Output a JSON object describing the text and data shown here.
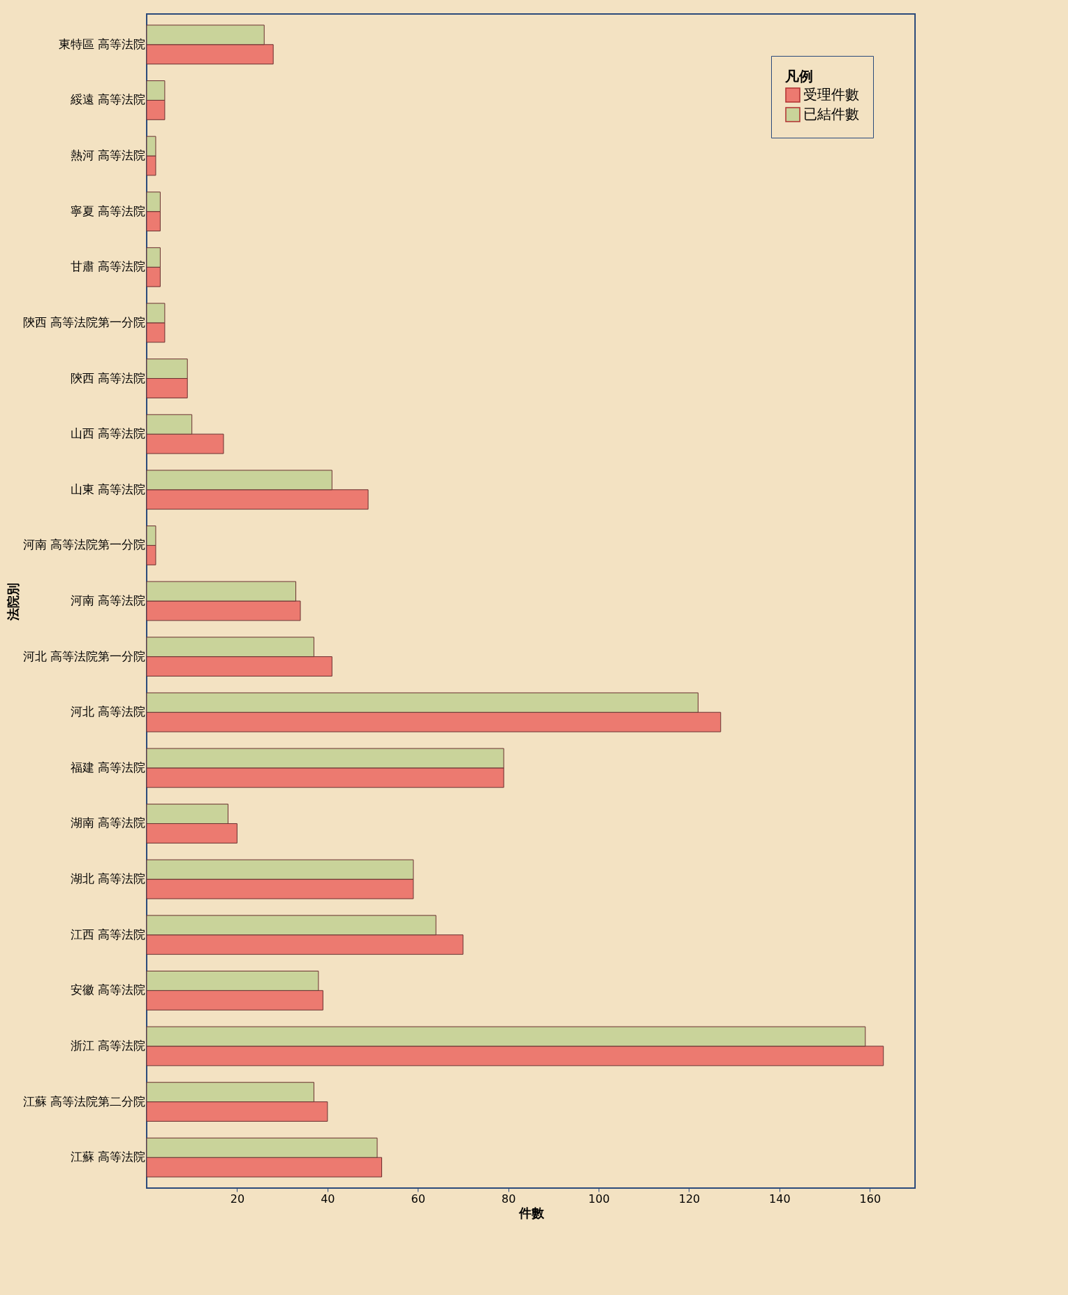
{
  "chart_data": {
    "type": "bar",
    "orientation": "horizontal",
    "xlabel": "件數",
    "ylabel": "法院別",
    "legend_title": "凡例",
    "legend": "top right",
    "grid": false,
    "categories": [
      "東特區 高等法院",
      "綏遠 高等法院",
      "熱河 高等法院",
      "寧夏 高等法院",
      "甘肅 高等法院",
      "陝西 高等法院第一分院",
      "陝西 高等法院",
      "山西 高等法院",
      "山東 高等法院",
      "河南 高等法院第一分院",
      "河南 高等法院",
      "河北 高等法院第一分院",
      "河北 高等法院",
      "福建 高等法院",
      "湖南 高等法院",
      "湖北 高等法院",
      "江西 高等法院",
      "安徽 高等法院",
      "浙江 高等法院",
      "江蘇 高等法院第二分院",
      "江蘇 高等法院"
    ],
    "series": [
      {
        "name": "受理件數",
        "color": "#ec7a70",
        "values": [
          28,
          4,
          2,
          3,
          3,
          4,
          9,
          17,
          49,
          2,
          34,
          41,
          127,
          79,
          20,
          59,
          70,
          39,
          163,
          40,
          52
        ]
      },
      {
        "name": "已結件數",
        "color": "#c9d39a",
        "values": [
          26,
          4,
          2,
          3,
          3,
          4,
          9,
          10,
          41,
          2,
          33,
          37,
          122,
          79,
          18,
          59,
          64,
          38,
          159,
          37,
          51
        ]
      }
    ],
    "xlim": [
      0,
      170
    ],
    "xticks": [
      20,
      40,
      60,
      80,
      100,
      120,
      140,
      160
    ]
  }
}
